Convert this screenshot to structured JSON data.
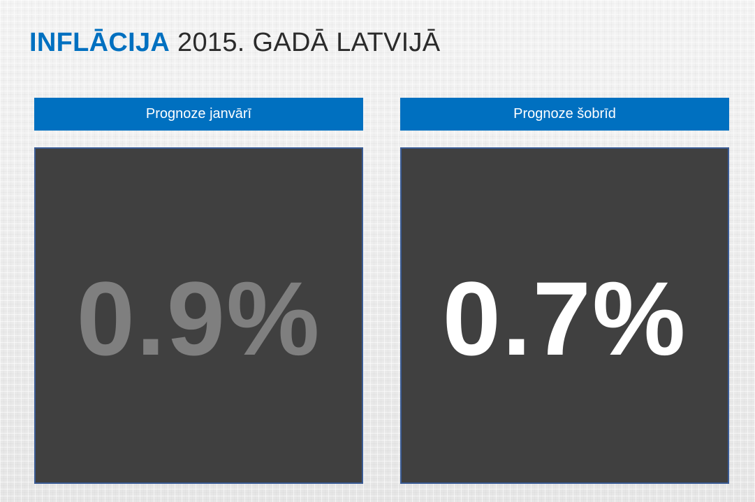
{
  "title": {
    "accent": "INFLĀCIJA",
    "rest": "2015. GADĀ LATVIJĀ"
  },
  "colors": {
    "accent": "#0070c0",
    "panel_bg": "#404040",
    "value_previous": "#7f7f7f",
    "value_current": "#ffffff"
  },
  "panels": [
    {
      "label": "Prognoze janvārī",
      "value": "0.9%"
    },
    {
      "label": "Prognoze šobrīd",
      "value": "0.7%"
    }
  ]
}
